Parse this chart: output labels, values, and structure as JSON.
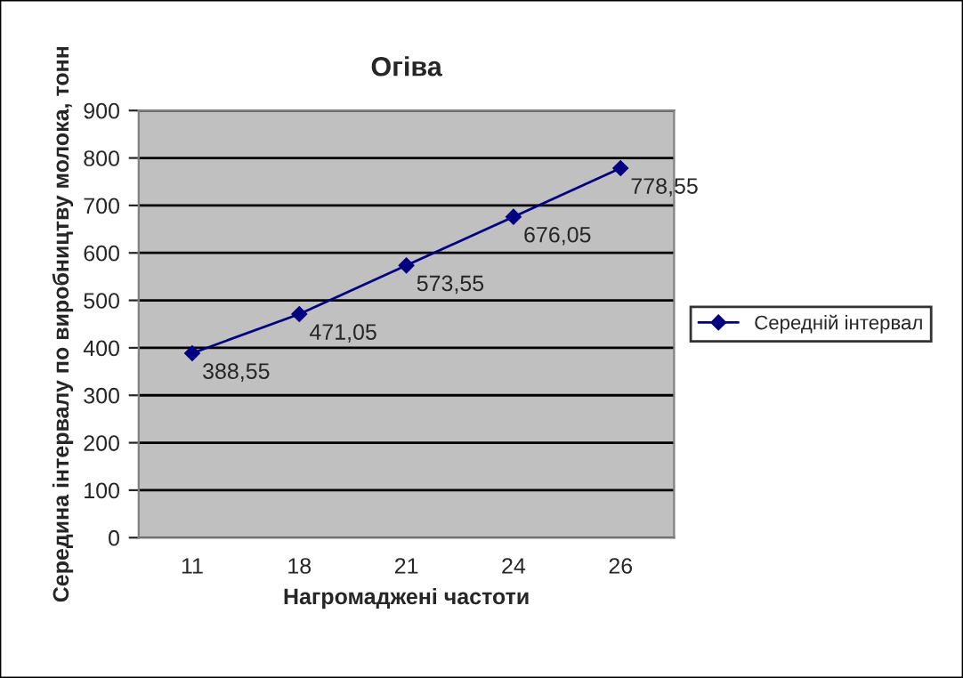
{
  "chart_data": {
    "type": "line",
    "title": "Огіва",
    "xlabel": "Нагромаджені частоти",
    "ylabel": "Середина інтервалу по виробництву молока, тонн",
    "categories": [
      "11",
      "18",
      "21",
      "24",
      "26"
    ],
    "series": [
      {
        "name": "Середній інтервал",
        "color": "#000080",
        "values": [
          388.55,
          471.05,
          573.55,
          676.05,
          778.55
        ],
        "value_labels": [
          "388,55",
          "471,05",
          "573,55",
          "676,05",
          "778,55"
        ]
      }
    ],
    "ylim": [
      0,
      900
    ],
    "yticks": [
      0,
      100,
      200,
      300,
      400,
      500,
      600,
      700,
      800,
      900
    ],
    "grid": "y",
    "legend": "right",
    "marker": "diamond",
    "line_style": "solid"
  }
}
